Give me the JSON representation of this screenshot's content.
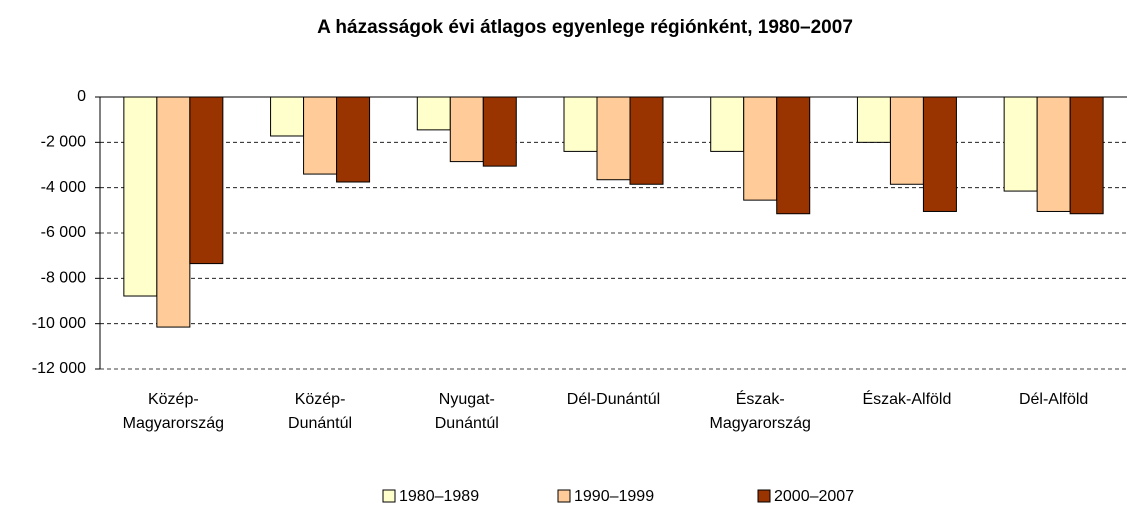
{
  "chart_data": {
    "type": "bar",
    "title": "A házasságok évi átlagos egyenlege régiónként, 1980–2007",
    "categories": [
      "Közép-\nMagyarország",
      "Közép-\nDunántúl",
      "Nyugat-\nDunántúl",
      "Dél-Dunántúl",
      "Észak-\nMagyarország",
      "Észak-Alföld",
      "Dél-Alföld"
    ],
    "series": [
      {
        "name": "1980–1989",
        "color": "#ffffcc",
        "values": [
          -8780,
          -1720,
          -1450,
          -2400,
          -2400,
          -2000,
          -4150
        ]
      },
      {
        "name": "1990–1999",
        "color": "#ffcc99",
        "values": [
          -10150,
          -3400,
          -2850,
          -3650,
          -4550,
          -3850,
          -5050
        ]
      },
      {
        "name": "2000–2007",
        "color": "#993300",
        "values": [
          -7350,
          -3750,
          -3050,
          -3850,
          -5150,
          -5050,
          -5150
        ]
      }
    ],
    "ylim": [
      -12000,
      0
    ],
    "yticks": [
      0,
      {
        "value": -2000,
        "label": "-2 000"
      },
      {
        "value": -4000,
        "label": "-4 000"
      },
      {
        "value": -6000,
        "label": "-6 000"
      },
      {
        "value": -8000,
        "label": "-8 000"
      },
      {
        "value": -10000,
        "label": "-10 000"
      },
      {
        "value": -12000,
        "label": "-12 000"
      }
    ],
    "grid": true,
    "legend": "bottom"
  }
}
